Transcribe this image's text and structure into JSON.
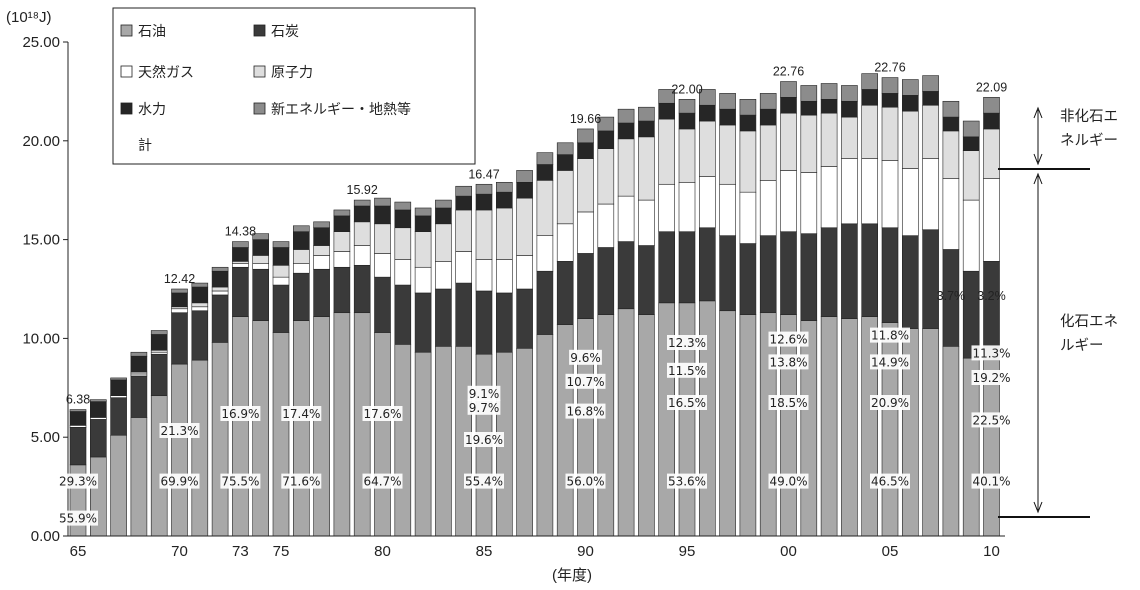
{
  "chart_data": {
    "type": "bar",
    "stacked": true,
    "y_unit": "(10¹⁸J)",
    "xlabel": "(年度)",
    "ylim": [
      0,
      25
    ],
    "y_ticks": [
      "0.00",
      "5.00",
      "10.00",
      "15.00",
      "20.00",
      "25.00"
    ],
    "x_tick_labels": [
      {
        "year": 1965,
        "label": "65"
      },
      {
        "year": 1970,
        "label": "70"
      },
      {
        "year": 1973,
        "label": "73"
      },
      {
        "year": 1975,
        "label": "75"
      },
      {
        "year": 1980,
        "label": "80"
      },
      {
        "year": 1985,
        "label": "85"
      },
      {
        "year": 1990,
        "label": "90"
      },
      {
        "year": 1995,
        "label": "95"
      },
      {
        "year": 2000,
        "label": "00"
      },
      {
        "year": 2005,
        "label": "05"
      },
      {
        "year": 2010,
        "label": "10"
      }
    ],
    "legend": [
      {
        "key": "oil",
        "label": "石油"
      },
      {
        "key": "coal",
        "label": "石炭"
      },
      {
        "key": "gas",
        "label": "天然ガス"
      },
      {
        "key": "nuclear",
        "label": "原子力"
      },
      {
        "key": "hydro",
        "label": "水力"
      },
      {
        "key": "newenergy",
        "label": "新エネルギー・地熱等"
      },
      {
        "key": "total",
        "label": "計"
      }
    ],
    "colors": {
      "oil": "#a8a8a8",
      "coal": "#3a3a3a",
      "gas": "#ffffff",
      "nuclear": "#dedede",
      "hydro": "#262626",
      "newenergy": "#8c8c8c"
    },
    "years": [
      1965,
      1966,
      1967,
      1968,
      1969,
      1970,
      1971,
      1972,
      1973,
      1974,
      1975,
      1976,
      1977,
      1978,
      1979,
      1980,
      1981,
      1982,
      1983,
      1984,
      1985,
      1986,
      1987,
      1988,
      1989,
      1990,
      1991,
      1992,
      1993,
      1994,
      1995,
      1996,
      1997,
      1998,
      1999,
      2000,
      2001,
      2002,
      2003,
      2004,
      2005,
      2006,
      2007,
      2008,
      2009,
      2010
    ],
    "series": [
      {
        "key": "oil",
        "values": [
          3.6,
          4.0,
          5.1,
          6.0,
          7.1,
          8.7,
          8.9,
          9.8,
          11.1,
          10.9,
          10.3,
          10.9,
          11.1,
          11.3,
          11.3,
          10.3,
          9.7,
          9.3,
          9.6,
          9.6,
          9.2,
          9.3,
          9.5,
          10.2,
          10.7,
          11.0,
          11.2,
          11.5,
          11.2,
          11.8,
          11.8,
          11.9,
          11.4,
          11.2,
          11.3,
          11.2,
          10.9,
          11.1,
          11.0,
          11.1,
          10.8,
          10.5,
          10.5,
          9.6,
          9.0,
          8.9
        ]
      },
      {
        "key": "coal",
        "values": [
          1.9,
          1.9,
          1.9,
          2.1,
          2.1,
          2.6,
          2.5,
          2.4,
          2.5,
          2.6,
          2.4,
          2.4,
          2.4,
          2.3,
          2.4,
          2.8,
          3.0,
          3.0,
          2.9,
          3.2,
          3.2,
          3.0,
          3.0,
          3.2,
          3.2,
          3.3,
          3.4,
          3.4,
          3.5,
          3.6,
          3.6,
          3.7,
          3.8,
          3.6,
          3.9,
          4.2,
          4.4,
          4.5,
          4.8,
          4.7,
          4.8,
          4.7,
          5.0,
          4.9,
          4.4,
          5.0
        ]
      },
      {
        "key": "gas",
        "values": [
          0.1,
          0.1,
          0.1,
          0.1,
          0.1,
          0.2,
          0.2,
          0.2,
          0.2,
          0.3,
          0.4,
          0.5,
          0.7,
          0.8,
          1.0,
          1.2,
          1.3,
          1.3,
          1.4,
          1.6,
          1.6,
          1.7,
          1.7,
          1.8,
          1.9,
          2.1,
          2.2,
          2.3,
          2.3,
          2.4,
          2.5,
          2.6,
          2.6,
          2.6,
          2.8,
          3.1,
          3.1,
          3.1,
          3.3,
          3.3,
          3.4,
          3.4,
          3.6,
          3.6,
          3.6,
          4.2
        ]
      },
      {
        "key": "nuclear",
        "values": [
          0.0,
          0.0,
          0.0,
          0.1,
          0.1,
          0.1,
          0.2,
          0.2,
          0.1,
          0.4,
          0.6,
          0.7,
          0.5,
          1.0,
          1.2,
          1.5,
          1.6,
          1.8,
          1.9,
          2.1,
          2.5,
          2.6,
          2.9,
          2.8,
          2.7,
          2.7,
          2.8,
          2.9,
          3.2,
          3.3,
          2.7,
          2.8,
          3.0,
          3.1,
          2.8,
          2.9,
          2.9,
          2.7,
          2.1,
          2.7,
          2.7,
          2.9,
          2.7,
          2.4,
          2.5,
          2.5
        ]
      },
      {
        "key": "hydro",
        "values": [
          0.7,
          0.8,
          0.8,
          0.8,
          0.8,
          0.7,
          0.8,
          0.8,
          0.7,
          0.8,
          0.9,
          0.9,
          0.9,
          0.8,
          0.8,
          0.9,
          0.9,
          0.8,
          0.8,
          0.7,
          0.8,
          0.8,
          0.8,
          0.8,
          0.8,
          0.8,
          0.9,
          0.8,
          0.8,
          0.8,
          0.8,
          0.8,
          0.8,
          0.8,
          0.8,
          0.8,
          0.7,
          0.7,
          0.8,
          0.8,
          0.7,
          0.8,
          0.7,
          0.7,
          0.7,
          0.8
        ]
      },
      {
        "key": "newenergy",
        "values": [
          0.1,
          0.1,
          0.1,
          0.2,
          0.2,
          0.2,
          0.2,
          0.2,
          0.3,
          0.3,
          0.3,
          0.3,
          0.3,
          0.3,
          0.3,
          0.4,
          0.4,
          0.4,
          0.4,
          0.5,
          0.5,
          0.5,
          0.6,
          0.6,
          0.6,
          0.7,
          0.7,
          0.7,
          0.7,
          0.7,
          0.7,
          0.8,
          0.8,
          0.8,
          0.8,
          0.8,
          0.8,
          0.8,
          0.8,
          0.8,
          0.8,
          0.8,
          0.8,
          0.8,
          0.8,
          0.8
        ]
      }
    ],
    "totals_labels": [
      {
        "year": 1965,
        "label": "6.38"
      },
      {
        "year": 1970,
        "label": "12.42"
      },
      {
        "year": 1973,
        "label": "14.38"
      },
      {
        "year": 1979,
        "label": "15.92"
      },
      {
        "year": 1985,
        "label": "16.47"
      },
      {
        "year": 1990,
        "label": "19.66"
      },
      {
        "year": 1995,
        "label": "22.00"
      },
      {
        "year": 2000,
        "label": "22.76"
      },
      {
        "year": 2005,
        "label": "22.76"
      },
      {
        "year": 2010,
        "label": "22.09"
      }
    ],
    "pct_labels": [
      {
        "year": 1965,
        "value": 17.4,
        "label": "55.9%"
      },
      {
        "year": 1965,
        "value": 54.4,
        "label": "29.3%"
      },
      {
        "year": 1970,
        "value": 54.4,
        "label": "69.9%"
      },
      {
        "year": 1970,
        "value": 105.0,
        "label": "21.3%"
      },
      {
        "year": 1973,
        "value": 54.4,
        "label": "75.5%"
      },
      {
        "year": 1973,
        "value": 122.0,
        "label": "16.9%"
      },
      {
        "year": 1976,
        "value": 54.4,
        "label": "71.6%"
      },
      {
        "year": 1976,
        "value": 122.0,
        "label": "17.4%"
      },
      {
        "year": 1980,
        "value": 54.4,
        "label": "64.7%"
      },
      {
        "year": 1980,
        "value": 122.0,
        "label": "17.6%"
      },
      {
        "year": 1985,
        "value": 54.4,
        "label": "55.4%"
      },
      {
        "year": 1985,
        "value": 96.0,
        "label": "19.6%"
      },
      {
        "year": 1985,
        "value": 128.2,
        "label": "9.7%"
      },
      {
        "year": 1985,
        "value": 142.2,
        "label": "9.1%"
      },
      {
        "year": 1990,
        "value": 54.4,
        "label": "56.0%"
      },
      {
        "year": 1990,
        "value": 124.4,
        "label": "16.8%"
      },
      {
        "year": 1990,
        "value": 154.2,
        "label": "10.7%"
      },
      {
        "year": 1990,
        "value": 178.2,
        "label": "9.6%"
      },
      {
        "year": 1995,
        "value": 54.4,
        "label": "53.6%"
      },
      {
        "year": 1995,
        "value": 133.0,
        "label": "16.5%"
      },
      {
        "year": 1995,
        "value": 165.2,
        "label": "11.5%"
      },
      {
        "year": 1995,
        "value": 193.0,
        "label": "12.3%"
      },
      {
        "year": 2000,
        "value": 54.4,
        "label": "49.0%"
      },
      {
        "year": 2000,
        "value": 133.0,
        "label": "18.5%"
      },
      {
        "year": 2000,
        "value": 173.6,
        "label": "13.8%"
      },
      {
        "year": 2000,
        "value": 196.4,
        "label": "12.6%"
      },
      {
        "year": 2005,
        "value": 54.4,
        "label": "46.5%"
      },
      {
        "year": 2005,
        "value": 133.0,
        "label": "20.9%"
      },
      {
        "year": 2005,
        "value": 173.6,
        "label": "14.9%"
      },
      {
        "year": 2005,
        "value": 200.4,
        "label": "11.8%"
      },
      {
        "year": 2010,
        "value": 54.4,
        "label": "40.1%"
      },
      {
        "year": 2010,
        "value": 115.6,
        "label": "22.5%"
      },
      {
        "year": 2010,
        "value": 158.0,
        "label": "19.2%"
      },
      {
        "year": 2010,
        "value": 182.6,
        "label": "11.3%"
      }
    ],
    "small_labels": [
      {
        "year": 2008,
        "value": 236.0,
        "label": "3.7%"
      },
      {
        "year": 2010,
        "value": 236.0,
        "label": "3.2%"
      }
    ],
    "side_labels": {
      "non_fossil": [
        "非化石エ",
        "ネルギー"
      ],
      "fossil": [
        "化石エネ",
        "ルギー"
      ]
    }
  }
}
